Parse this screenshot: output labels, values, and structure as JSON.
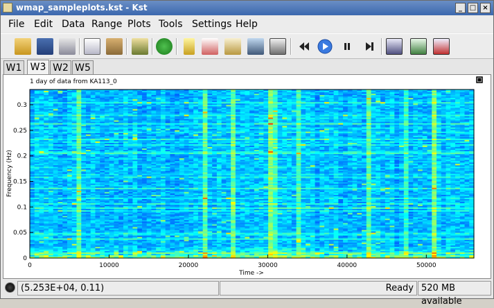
{
  "window": {
    "title": "wmap_sampleplots.kst - Kst"
  },
  "menu": [
    "File",
    "Edit",
    "Data",
    "Range",
    "Plots",
    "Tools",
    "Settings",
    "Help"
  ],
  "tabs": [
    "W1",
    "W3",
    "W2",
    "W5"
  ],
  "active_tab": "W3",
  "plot": {
    "title": "1 day of data from KA113_0"
  },
  "chart_data": {
    "type": "heatmap",
    "title": "1 day of data from KA113_0",
    "xlabel": "Time ->",
    "ylabel": "Frequency (Hz)",
    "xlim": [
      0,
      56000
    ],
    "ylim": [
      0,
      0.33
    ],
    "x_ticks": [
      "0",
      "10000",
      "20000",
      "30000",
      "40000",
      "50000"
    ],
    "y_ticks": [
      "0",
      "0.05",
      "0.1",
      "0.15",
      "0.2",
      "0.25",
      "0.3"
    ],
    "colormap": "jet",
    "grid": false
  },
  "status": {
    "coords": "(5.253E+04, 0.11)",
    "ready": "Ready",
    "memory": "520 MB available"
  }
}
